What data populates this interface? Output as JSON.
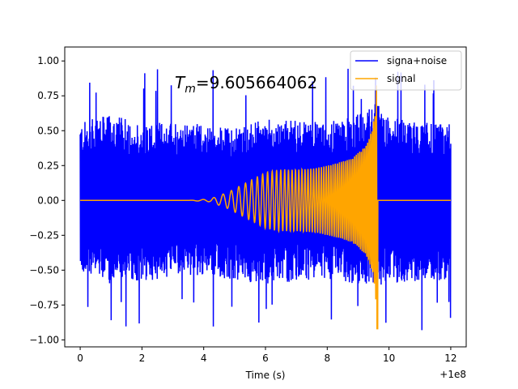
{
  "chart_data": {
    "type": "line",
    "xlabel": "Time (s)",
    "ylabel": "",
    "x_offset_label": "+1e8",
    "xlim": [
      -0.5,
      12.5
    ],
    "ylim": [
      -1.05,
      1.1
    ],
    "xticks": [
      0,
      2,
      4,
      6,
      8,
      10,
      12
    ],
    "xtick_labels": [
      "0",
      "2",
      "4",
      "6",
      "8",
      "10",
      "12"
    ],
    "yticks": [
      -1.0,
      -0.75,
      -0.5,
      -0.25,
      0.0,
      0.25,
      0.5,
      0.75,
      1.0
    ],
    "ytick_labels": [
      "−1.00",
      "−0.75",
      "−0.50",
      "−0.25",
      "0.00",
      "0.25",
      "0.50",
      "0.75",
      "1.00"
    ],
    "grid": false,
    "legend_position": "top-right",
    "annotation": {
      "symbol": "T",
      "subscript": "m",
      "value_text": "=9.605664062",
      "x": 3.05,
      "y": 0.84
    },
    "series": [
      {
        "name": "signa+noise",
        "color": "#0000ff",
        "x_range": [
          0,
          12
        ],
        "envelope_upper": [
          [
            0,
            0.56
          ],
          [
            1,
            0.62
          ],
          [
            2,
            0.55
          ],
          [
            3,
            0.58
          ],
          [
            4,
            0.54
          ],
          [
            5,
            0.52
          ],
          [
            6,
            0.58
          ],
          [
            7,
            0.58
          ],
          [
            8,
            0.56
          ],
          [
            9,
            0.62
          ],
          [
            9.6,
            0.7
          ],
          [
            10,
            0.6
          ],
          [
            11,
            0.56
          ],
          [
            12,
            0.55
          ]
        ],
        "envelope_lower": [
          [
            0,
            -0.52
          ],
          [
            1,
            -0.6
          ],
          [
            2,
            -0.58
          ],
          [
            3,
            -0.55
          ],
          [
            4,
            -0.54
          ],
          [
            5,
            -0.58
          ],
          [
            6,
            -0.6
          ],
          [
            7,
            -0.58
          ],
          [
            8,
            -0.56
          ],
          [
            9,
            -0.6
          ],
          [
            9.6,
            -0.62
          ],
          [
            10,
            -0.6
          ],
          [
            11,
            -0.58
          ],
          [
            12,
            -0.57
          ]
        ],
        "peak_max": 0.95,
        "peak_min": -0.94
      },
      {
        "name": "signal",
        "color": "#ffa500",
        "x_range": [
          0,
          12
        ],
        "envelope": [
          [
            0,
            0.0
          ],
          [
            3.5,
            0.0
          ],
          [
            4.2,
            0.01
          ],
          [
            4.8,
            0.06
          ],
          [
            5.4,
            0.13
          ],
          [
            6.0,
            0.2
          ],
          [
            6.4,
            0.22
          ],
          [
            7.0,
            0.22
          ],
          [
            7.6,
            0.23
          ],
          [
            8.2,
            0.26
          ],
          [
            8.8,
            0.3
          ],
          [
            9.2,
            0.38
          ],
          [
            9.45,
            0.5
          ],
          [
            9.56,
            0.65
          ],
          [
            9.605664062,
            0.92
          ],
          [
            9.61,
            0.0
          ],
          [
            12,
            0.0
          ]
        ],
        "frequency_start": 1.2,
        "frequency_end": 22.0,
        "merger_time": 9.605664062
      }
    ]
  }
}
